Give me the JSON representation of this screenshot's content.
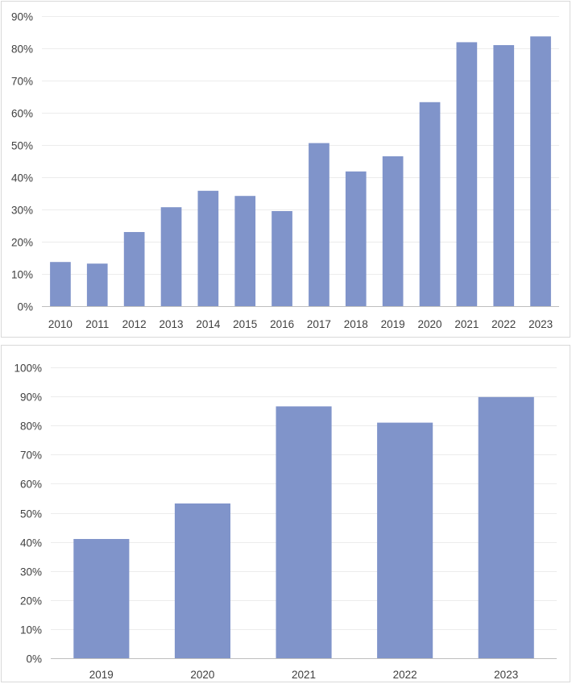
{
  "chart_data": [
    {
      "type": "bar",
      "categories": [
        "2010",
        "2011",
        "2012",
        "2013",
        "2014",
        "2015",
        "2016",
        "2017",
        "2018",
        "2019",
        "2020",
        "2021",
        "2022",
        "2023"
      ],
      "values": [
        13.7,
        13.2,
        23.0,
        30.7,
        35.8,
        34.2,
        29.5,
        50.6,
        41.8,
        46.5,
        63.3,
        81.9,
        81.0,
        83.7
      ],
      "ylim": [
        0,
        90
      ],
      "yticks": [
        0,
        10,
        20,
        30,
        40,
        50,
        60,
        70,
        80,
        90
      ],
      "ytick_labels": [
        "0%",
        "10%",
        "20%",
        "30%",
        "40%",
        "50%",
        "60%",
        "70%",
        "80%",
        "90%"
      ],
      "title": "",
      "xlabel": "",
      "ylabel": "",
      "grid": true,
      "bar_color": "#8094CA"
    },
    {
      "type": "bar",
      "categories": [
        "2019",
        "2020",
        "2021",
        "2022",
        "2023"
      ],
      "values": [
        41.0,
        53.2,
        86.6,
        81.0,
        89.8
      ],
      "ylim": [
        0,
        100
      ],
      "yticks": [
        0,
        10,
        20,
        30,
        40,
        50,
        60,
        70,
        80,
        90,
        100
      ],
      "ytick_labels": [
        "0%",
        "10%",
        "20%",
        "30%",
        "40%",
        "50%",
        "60%",
        "70%",
        "80%",
        "90%",
        "100%"
      ],
      "title": "",
      "xlabel": "",
      "ylabel": "",
      "grid": true,
      "bar_color": "#8094CA"
    }
  ]
}
